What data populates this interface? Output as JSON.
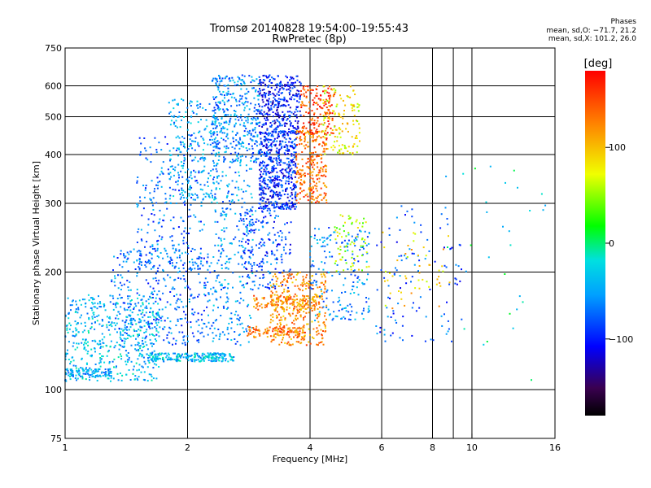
{
  "header": {
    "title_line1": "Tromsø 20140828 19:54:00–19:55:43",
    "title_line2": "RwPretec (8p)",
    "stats_title": "Phases",
    "stats_o": "mean, sd,O: −71.7, 21.2",
    "stats_x": "mean, sd,X: 101.2, 26.0"
  },
  "colorbar": {
    "unit_label": "[deg]",
    "ticks": [
      "100",
      "0",
      "−100"
    ],
    "tick_values": [
      100,
      0,
      -100
    ],
    "range": [
      -180,
      180
    ]
  },
  "chart_data": {
    "type": "scatter",
    "xlabel": "Frequency [MHz]",
    "ylabel": "Stationary phase Virtual Height [km]",
    "x_scale": "log",
    "y_scale": "log",
    "xlim": [
      1,
      16
    ],
    "ylim": [
      75,
      750
    ],
    "x_ticks": [
      1,
      2,
      4,
      6,
      8,
      10,
      16
    ],
    "x_tick_labels": [
      "1",
      "2",
      "4",
      "6",
      "8",
      "10",
      "16"
    ],
    "y_ticks": [
      75,
      100,
      200,
      300,
      400,
      500,
      600,
      750
    ],
    "y_tick_labels": [
      "75",
      "100",
      "200",
      "300",
      "400",
      "500",
      "600",
      "750"
    ],
    "grid_x": [
      2,
      4,
      6,
      8,
      9,
      10
    ],
    "grid_y": [
      100,
      200,
      300,
      400,
      500,
      600
    ],
    "colormap": "rainbow",
    "color_value": "phase [deg]",
    "clusters": [
      {
        "freq": [
          1.0,
          1.7
        ],
        "height": [
          105,
          175
        ],
        "phase": -40,
        "n": 520
      },
      {
        "freq": [
          1.0,
          1.3
        ],
        "height": [
          108,
          113
        ],
        "phase": -45,
        "n": 80
      },
      {
        "freq": [
          1.6,
          2.6
        ],
        "height": [
          118,
          124
        ],
        "phase": -40,
        "n": 220
      },
      {
        "freq": [
          1.3,
          2.3
        ],
        "height": [
          130,
          230
        ],
        "phase": -70,
        "n": 360
      },
      {
        "freq": [
          1.5,
          2.2
        ],
        "height": [
          200,
          450
        ],
        "phase": -70,
        "n": 260
      },
      {
        "freq": [
          1.8,
          2.4
        ],
        "height": [
          300,
          560
        ],
        "phase": -50,
        "n": 220
      },
      {
        "freq": [
          2.3,
          3.0
        ],
        "height": [
          380,
          640
        ],
        "phase": -60,
        "n": 380
      },
      {
        "freq": [
          2.3,
          2.9
        ],
        "height": [
          130,
          380
        ],
        "phase": -55,
        "n": 260
      },
      {
        "freq": [
          2.7,
          3.6
        ],
        "height": [
          180,
          300
        ],
        "phase": -85,
        "n": 220
      },
      {
        "freq": [
          3.0,
          3.7
        ],
        "height": [
          290,
          460
        ],
        "phase": -95,
        "n": 520
      },
      {
        "freq": [
          3.0,
          3.8
        ],
        "height": [
          450,
          640
        ],
        "phase": -100,
        "n": 340
      },
      {
        "freq": [
          3.2,
          4.4
        ],
        "height": [
          130,
          200
        ],
        "phase": 120,
        "n": 320
      },
      {
        "freq": [
          2.9,
          4.3
        ],
        "height": [
          160,
          175
        ],
        "phase": 125,
        "n": 140
      },
      {
        "freq": [
          2.8,
          3.9
        ],
        "height": [
          136,
          145
        ],
        "phase": 130,
        "n": 110
      },
      {
        "freq": [
          3.7,
          4.4
        ],
        "height": [
          300,
          460
        ],
        "phase": 135,
        "n": 260
      },
      {
        "freq": [
          3.8,
          4.6
        ],
        "height": [
          450,
          600
        ],
        "phase": 150,
        "n": 160
      },
      {
        "freq": [
          4.3,
          5.3
        ],
        "height": [
          400,
          600
        ],
        "phase": 80,
        "n": 130
      },
      {
        "freq": [
          4.0,
          5.6
        ],
        "height": [
          150,
          260
        ],
        "phase": -60,
        "n": 180
      },
      {
        "freq": [
          4.6,
          5.6
        ],
        "height": [
          200,
          280
        ],
        "phase": 60,
        "n": 70
      },
      {
        "freq": [
          5.8,
          9.5
        ],
        "height": [
          130,
          300
        ],
        "phase": -80,
        "n": 110
      },
      {
        "freq": [
          6.0,
          9.0
        ],
        "height": [
          160,
          260
        ],
        "phase": 90,
        "n": 50
      },
      {
        "freq": [
          8.5,
          15.5
        ],
        "height": [
          100,
          420
        ],
        "phase": -20,
        "n": 30
      }
    ]
  }
}
